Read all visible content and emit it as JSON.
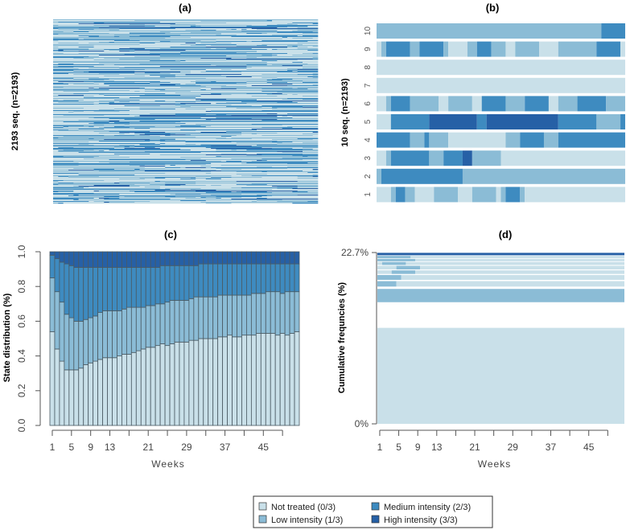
{
  "colors": {
    "not_treated": "#c9e0e9",
    "low": "#8bbcd6",
    "medium": "#3e8bc0",
    "high": "#2660a6"
  },
  "legend": [
    {
      "label": "Not treated (0/3)",
      "state": "not_treated"
    },
    {
      "label": "Low intensity (1/3)",
      "state": "low"
    },
    {
      "label": "Medium intensity (2/3)",
      "state": "medium"
    },
    {
      "label": "High intensity (3/3)",
      "state": "high"
    }
  ],
  "chart_data": [
    {
      "panel": "a",
      "type": "heatmap",
      "title": "(a)",
      "ylabel": "2193 seq. (n=2193)",
      "n_sequences": 2193,
      "weeks": 52
    },
    {
      "panel": "b",
      "type": "heatmap",
      "title": "(b)",
      "ylabel": "10 seq. (n=2193)",
      "row_labels": [
        "1",
        "2",
        "3",
        "4",
        "5",
        "6",
        "7",
        "8",
        "9",
        "10"
      ],
      "weeks": 52,
      "sequences": [
        [
          [
            "not_treated",
            1,
            3
          ],
          [
            "low",
            4,
            4
          ],
          [
            "medium",
            5,
            6
          ],
          [
            "low",
            7,
            8
          ],
          [
            "not_treated",
            9,
            12
          ],
          [
            "low",
            13,
            17
          ],
          [
            "not_treated",
            18,
            20
          ],
          [
            "low",
            21,
            25
          ],
          [
            "not_treated",
            26,
            26
          ],
          [
            "low",
            27,
            27
          ],
          [
            "medium",
            28,
            30
          ],
          [
            "low",
            31,
            31
          ],
          [
            "not_treated",
            32,
            52
          ]
        ],
        [
          [
            "low",
            1,
            1
          ],
          [
            "medium",
            2,
            18
          ],
          [
            "low",
            19,
            52
          ]
        ],
        [
          [
            "not_treated",
            1,
            2
          ],
          [
            "low",
            3,
            3
          ],
          [
            "medium",
            4,
            11
          ],
          [
            "low",
            12,
            14
          ],
          [
            "medium",
            15,
            18
          ],
          [
            "high",
            19,
            20
          ],
          [
            "low",
            21,
            26
          ],
          [
            "not_treated",
            27,
            52
          ]
        ],
        [
          [
            "medium",
            1,
            7
          ],
          [
            "low",
            8,
            10
          ],
          [
            "medium",
            11,
            11
          ],
          [
            "low",
            12,
            15
          ],
          [
            "not_treated",
            16,
            27
          ],
          [
            "low",
            28,
            30
          ],
          [
            "medium",
            31,
            35
          ],
          [
            "low",
            36,
            38
          ],
          [
            "medium",
            39,
            52
          ]
        ],
        [
          [
            "not_treated",
            1,
            3
          ],
          [
            "medium",
            4,
            11
          ],
          [
            "high",
            12,
            21
          ],
          [
            "medium",
            22,
            23
          ],
          [
            "high",
            24,
            38
          ],
          [
            "medium",
            39,
            46
          ],
          [
            "low",
            47,
            51
          ],
          [
            "medium",
            52,
            52
          ]
        ],
        [
          [
            "not_treated",
            1,
            2
          ],
          [
            "low",
            3,
            3
          ],
          [
            "medium",
            4,
            7
          ],
          [
            "low",
            8,
            13
          ],
          [
            "not_treated",
            14,
            15
          ],
          [
            "low",
            16,
            20
          ],
          [
            "not_treated",
            21,
            22
          ],
          [
            "medium",
            23,
            27
          ],
          [
            "low",
            28,
            31
          ],
          [
            "medium",
            32,
            36
          ],
          [
            "not_treated",
            37,
            38
          ],
          [
            "low",
            39,
            42
          ],
          [
            "medium",
            43,
            48
          ],
          [
            "low",
            49,
            52
          ]
        ],
        [
          [
            "not_treated",
            1,
            52
          ]
        ],
        [
          [
            "not_treated",
            1,
            52
          ]
        ],
        [
          [
            "not_treated",
            1,
            1
          ],
          [
            "low",
            2,
            2
          ],
          [
            "medium",
            3,
            7
          ],
          [
            "low",
            8,
            9
          ],
          [
            "medium",
            10,
            14
          ],
          [
            "low",
            15,
            15
          ],
          [
            "not_treated",
            16,
            19
          ],
          [
            "low",
            20,
            21
          ],
          [
            "medium",
            22,
            24
          ],
          [
            "low",
            25,
            27
          ],
          [
            "not_treated",
            28,
            29
          ],
          [
            "low",
            30,
            34
          ],
          [
            "not_treated",
            35,
            38
          ],
          [
            "low",
            39,
            46
          ],
          [
            "medium",
            47,
            51
          ],
          [
            "not_treated",
            52,
            52
          ]
        ],
        [
          [
            "low",
            1,
            47
          ],
          [
            "medium",
            48,
            52
          ]
        ]
      ]
    },
    {
      "panel": "c",
      "type": "bar",
      "stacked": true,
      "title": "(c)",
      "xlabel": "Weeks",
      "ylabel": "State distribution (%)",
      "ylim": [
        0,
        1
      ],
      "yticks": [
        "0.0",
        "0.2",
        "0.4",
        "0.6",
        "0.8",
        "1.0"
      ],
      "xtick_labels": [
        "1",
        "5",
        "9",
        "13",
        "21",
        "29",
        "37",
        "45"
      ],
      "x": [
        1,
        2,
        3,
        4,
        5,
        6,
        7,
        8,
        9,
        10,
        11,
        12,
        13,
        14,
        15,
        16,
        17,
        18,
        19,
        20,
        21,
        22,
        23,
        24,
        25,
        26,
        27,
        28,
        29,
        30,
        31,
        32,
        33,
        34,
        35,
        36,
        37,
        38,
        39,
        40,
        41,
        42,
        43,
        44,
        45,
        46,
        47,
        48,
        49,
        50,
        51,
        52
      ],
      "cumulative_series": [
        {
          "name": "Not treated (0/3)",
          "state": "not_treated",
          "values": [
            0.54,
            0.44,
            0.37,
            0.32,
            0.32,
            0.32,
            0.33,
            0.35,
            0.36,
            0.37,
            0.38,
            0.39,
            0.39,
            0.39,
            0.4,
            0.41,
            0.41,
            0.42,
            0.43,
            0.44,
            0.45,
            0.45,
            0.46,
            0.47,
            0.46,
            0.47,
            0.48,
            0.48,
            0.48,
            0.49,
            0.49,
            0.5,
            0.5,
            0.5,
            0.5,
            0.51,
            0.51,
            0.52,
            0.51,
            0.51,
            0.52,
            0.52,
            0.52,
            0.53,
            0.53,
            0.53,
            0.53,
            0.52,
            0.53,
            0.52,
            0.53,
            0.54
          ]
        },
        {
          "name": "Low intensity (1/3)",
          "state": "low",
          "values": [
            0.85,
            0.77,
            0.71,
            0.64,
            0.62,
            0.6,
            0.6,
            0.61,
            0.62,
            0.63,
            0.65,
            0.66,
            0.66,
            0.66,
            0.66,
            0.67,
            0.68,
            0.68,
            0.68,
            0.68,
            0.69,
            0.69,
            0.7,
            0.7,
            0.71,
            0.72,
            0.72,
            0.72,
            0.72,
            0.73,
            0.74,
            0.74,
            0.74,
            0.74,
            0.74,
            0.75,
            0.75,
            0.75,
            0.75,
            0.75,
            0.75,
            0.75,
            0.76,
            0.76,
            0.76,
            0.77,
            0.77,
            0.77,
            0.76,
            0.77,
            0.77,
            0.77
          ]
        },
        {
          "name": "Medium intensity (2/3)",
          "state": "medium",
          "values": [
            0.98,
            0.96,
            0.94,
            0.93,
            0.92,
            0.91,
            0.91,
            0.91,
            0.91,
            0.91,
            0.91,
            0.91,
            0.91,
            0.91,
            0.91,
            0.91,
            0.91,
            0.91,
            0.91,
            0.91,
            0.91,
            0.91,
            0.91,
            0.92,
            0.92,
            0.92,
            0.92,
            0.92,
            0.92,
            0.92,
            0.92,
            0.93,
            0.93,
            0.93,
            0.93,
            0.93,
            0.93,
            0.93,
            0.93,
            0.93,
            0.93,
            0.93,
            0.93,
            0.93,
            0.93,
            0.93,
            0.93,
            0.93,
            0.93,
            0.93,
            0.93,
            0.93
          ]
        },
        {
          "name": "High intensity (3/3)",
          "state": "high",
          "values": [
            1,
            1,
            1,
            1,
            1,
            1,
            1,
            1,
            1,
            1,
            1,
            1,
            1,
            1,
            1,
            1,
            1,
            1,
            1,
            1,
            1,
            1,
            1,
            1,
            1,
            1,
            1,
            1,
            1,
            1,
            1,
            1,
            1,
            1,
            1,
            1,
            1,
            1,
            1,
            1,
            1,
            1,
            1,
            1,
            1,
            1,
            1,
            1,
            1,
            1,
            1,
            1
          ]
        }
      ]
    },
    {
      "panel": "d",
      "type": "bar",
      "title": "(d)",
      "xlabel": "Weeks",
      "ylabel": "Cumulative frequncies (%)",
      "yticks": [
        "0%",
        "22.7%"
      ],
      "ylim": [
        0,
        22.7
      ],
      "xtick_labels": [
        "1",
        "5",
        "9",
        "13",
        "21",
        "29",
        "37",
        "45"
      ],
      "sequences": [
        {
          "freq": 15.9,
          "segments": [
            [
              "not_treated",
              1,
              52
            ]
          ]
        },
        {
          "freq": 2.2,
          "segments": [
            [
              "low",
              1,
              52
            ]
          ]
        },
        {
          "freq": 0.9,
          "segments": [
            [
              "low",
              1,
              4
            ],
            [
              "not_treated",
              5,
              52
            ]
          ]
        },
        {
          "freq": 0.8,
          "segments": [
            [
              "low",
              1,
              5
            ],
            [
              "not_treated",
              6,
              52
            ]
          ]
        },
        {
          "freq": 0.6,
          "segments": [
            [
              "not_treated",
              1,
              3
            ],
            [
              "low",
              4,
              8
            ],
            [
              "not_treated",
              9,
              52
            ]
          ]
        },
        {
          "freq": 0.6,
          "segments": [
            [
              "not_treated",
              1,
              4
            ],
            [
              "low",
              5,
              9
            ],
            [
              "not_treated",
              10,
              52
            ]
          ]
        },
        {
          "freq": 0.5,
          "segments": [
            [
              "not_treated",
              1,
              1
            ],
            [
              "low",
              2,
              6
            ],
            [
              "not_treated",
              7,
              52
            ]
          ]
        },
        {
          "freq": 0.4,
          "segments": [
            [
              "low",
              1,
              8
            ],
            [
              "not_treated",
              9,
              52
            ]
          ]
        },
        {
          "freq": 0.4,
          "segments": [
            [
              "low",
              1,
              7
            ],
            [
              "not_treated",
              8,
              52
            ]
          ]
        },
        {
          "freq": 0.4,
          "segments": [
            [
              "high",
              1,
              52
            ]
          ]
        }
      ]
    }
  ]
}
